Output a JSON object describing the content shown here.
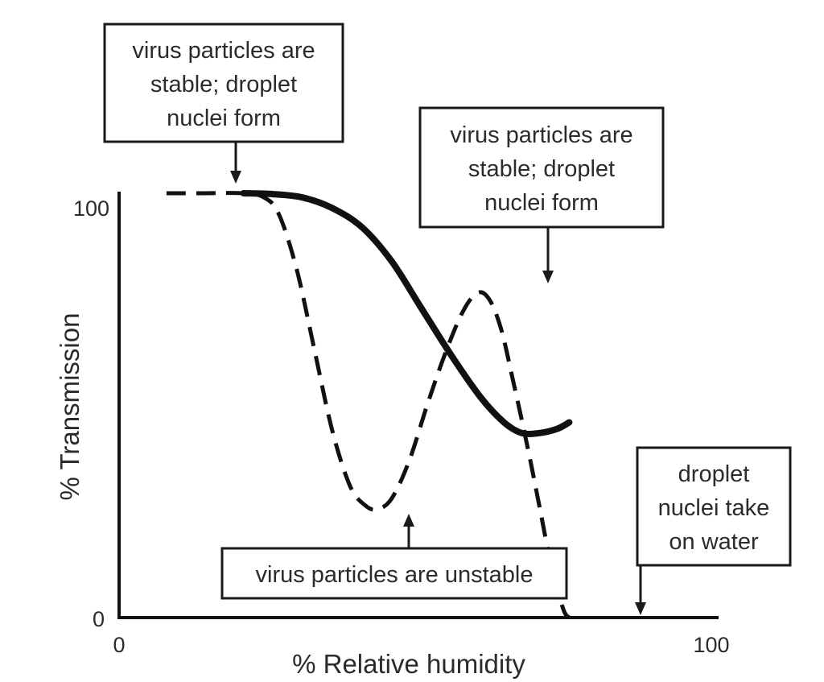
{
  "chart_data": {
    "type": "line",
    "xlabel": "% Relative humidity",
    "ylabel": "% Transmission",
    "xlim": [
      0,
      100
    ],
    "ylim": [
      0,
      100
    ],
    "x_ticks": [
      "0",
      "100"
    ],
    "y_ticks": [
      "0",
      "100"
    ],
    "grid": false,
    "series": [
      {
        "style": "solid",
        "points": [
          [
            21,
            100
          ],
          [
            26,
            99.8
          ],
          [
            31,
            99
          ],
          [
            36,
            96.5
          ],
          [
            41,
            92
          ],
          [
            46,
            84
          ],
          [
            51,
            73
          ],
          [
            56,
            62
          ],
          [
            61,
            52
          ],
          [
            65,
            46
          ],
          [
            68,
            43.5
          ],
          [
            71,
            43.5
          ],
          [
            74,
            44.5
          ],
          [
            76,
            46
          ]
        ]
      },
      {
        "style": "dashed",
        "points": [
          [
            8,
            100
          ],
          [
            14,
            100
          ],
          [
            21,
            100
          ],
          [
            24.5,
            99
          ],
          [
            27,
            95
          ],
          [
            30,
            82
          ],
          [
            33,
            63
          ],
          [
            36,
            44
          ],
          [
            39,
            31
          ],
          [
            41.5,
            26.5
          ],
          [
            43.5,
            25.5
          ],
          [
            46,
            28
          ],
          [
            49,
            37
          ],
          [
            52,
            50
          ],
          [
            55,
            62
          ],
          [
            58,
            72
          ],
          [
            60.5,
            76.5
          ],
          [
            62.5,
            75
          ],
          [
            64.5,
            68
          ],
          [
            66.5,
            56
          ],
          [
            69,
            40
          ],
          [
            71,
            26
          ],
          [
            73,
            12
          ],
          [
            75,
            2
          ],
          [
            76,
            0
          ]
        ]
      }
    ],
    "annotations": [
      {
        "lines": [
          "virus particles are",
          "stable; droplet",
          "nuclei form"
        ],
        "points_to": [
          19,
          100
        ]
      },
      {
        "lines": [
          "virus particles are",
          "stable; droplet",
          "nuclei form"
        ],
        "points_to": [
          71,
          78
        ]
      },
      {
        "lines": [
          "virus particles are unstable"
        ],
        "points_to": [
          48,
          25
        ]
      },
      {
        "lines": [
          "droplet",
          "nuclei take",
          "on water"
        ],
        "points_to": [
          87,
          0
        ]
      }
    ]
  }
}
